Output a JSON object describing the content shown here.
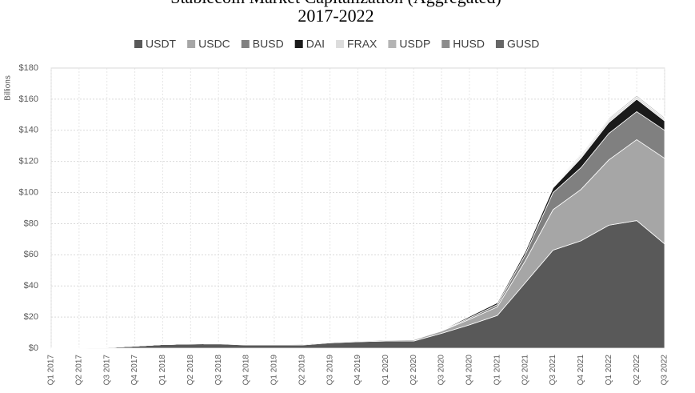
{
  "chart_data": {
    "type": "stacked-area",
    "title": "Stablecoin Market Capitalization (Aggregated)",
    "subtitle": "2017-2022",
    "y_label": "Billions",
    "categories": [
      "Q1 2017",
      "Q2 2017",
      "Q3 2017",
      "Q4 2017",
      "Q1 2018",
      "Q2 2018",
      "Q3 2018",
      "Q4 2018",
      "Q1 2019",
      "Q2 2019",
      "Q3 2019",
      "Q4 2019",
      "Q1 2020",
      "Q2 2020",
      "Q3 2020",
      "Q4 2020",
      "Q1 2021",
      "Q2 2021",
      "Q3 2021",
      "Q4 2021",
      "Q1 2022",
      "Q2 2022",
      "Q3 2022"
    ],
    "series": [
      {
        "name": "USDT",
        "color": "#595959",
        "values": [
          0.02,
          0.1,
          0.4,
          1.3,
          2.3,
          2.7,
          2.8,
          2.0,
          2.0,
          2.0,
          3.4,
          4.1,
          4.6,
          4.6,
          9.5,
          15,
          21,
          42,
          63,
          69,
          79,
          82,
          67
        ]
      },
      {
        "name": "USDC",
        "color": "#a6a6a6",
        "values": [
          0,
          0,
          0,
          0,
          0,
          0,
          0.1,
          0.3,
          0.3,
          0.5,
          0.5,
          0.5,
          0.6,
          0.8,
          1.5,
          3.5,
          5.5,
          14,
          26,
          33,
          42,
          52,
          55
        ]
      },
      {
        "name": "BUSD",
        "color": "#808080",
        "values": [
          0,
          0,
          0,
          0,
          0,
          0,
          0,
          0,
          0,
          0.02,
          0.03,
          0.03,
          0.03,
          0.1,
          0.2,
          0.9,
          1.5,
          4,
          11,
          14,
          17,
          18,
          18
        ]
      },
      {
        "name": "DAI",
        "color": "#1a1a1a",
        "values": [
          0,
          0,
          0,
          0,
          0,
          0.03,
          0.05,
          0.06,
          0.08,
          0.1,
          0.1,
          0.05,
          0.1,
          0.1,
          0.4,
          1,
          1.2,
          2,
          3,
          6,
          7,
          8,
          6
        ]
      },
      {
        "name": "FRAX",
        "color": "#dcdcdc",
        "values": [
          0,
          0,
          0,
          0,
          0,
          0,
          0,
          0,
          0,
          0,
          0,
          0,
          0,
          0,
          0,
          0.05,
          0.1,
          0.2,
          0.5,
          1.3,
          1.7,
          1.5,
          1.4
        ]
      },
      {
        "name": "USDP",
        "color": "#b4b4b4",
        "values": [
          0,
          0,
          0,
          0,
          0,
          0,
          0,
          0.02,
          0.03,
          0.05,
          0.05,
          0.06,
          0.1,
          0.1,
          0.1,
          0.2,
          0.3,
          0.4,
          0.6,
          0.9,
          0.9,
          1.0,
          0.9
        ]
      },
      {
        "name": "HUSD",
        "color": "#8c8c8c",
        "values": [
          0,
          0,
          0,
          0,
          0,
          0,
          0,
          0,
          0,
          0,
          0,
          0.01,
          0.02,
          0.05,
          0.1,
          0.2,
          0.3,
          0.5,
          0.6,
          0.7,
          0.6,
          0.5,
          0.3
        ]
      },
      {
        "name": "GUSD",
        "color": "#666666",
        "values": [
          0,
          0,
          0,
          0,
          0,
          0,
          0.01,
          0.02,
          0.05,
          0.05,
          0.02,
          0.01,
          0.01,
          0.01,
          0.01,
          0.01,
          0.01,
          0.02,
          0.1,
          0.3,
          0.4,
          0.4,
          0.5
        ]
      }
    ],
    "ylim": [
      0,
      180
    ],
    "yticks": [
      {
        "value": 0,
        "label": "$0"
      },
      {
        "value": 20,
        "label": "$20"
      },
      {
        "value": 40,
        "label": "$40"
      },
      {
        "value": 60,
        "label": "$60"
      },
      {
        "value": 80,
        "label": "$80"
      },
      {
        "value": 100,
        "label": "$100"
      },
      {
        "value": 120,
        "label": "$120"
      },
      {
        "value": 140,
        "label": "$140"
      },
      {
        "value": 160,
        "label": "$160"
      },
      {
        "value": 180,
        "label": "$180"
      }
    ],
    "grid": true
  }
}
